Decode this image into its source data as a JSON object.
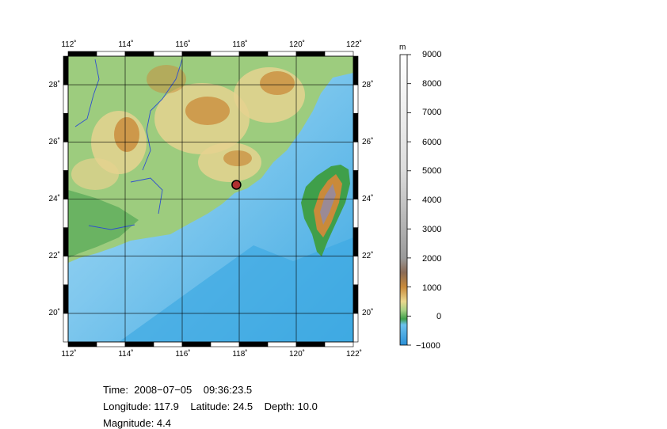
{
  "map": {
    "lon_ticks": [
      "112˚",
      "114˚",
      "116˚",
      "118˚",
      "120˚",
      "122˚"
    ],
    "lat_ticks": [
      "28˚",
      "26˚",
      "24˚",
      "22˚",
      "20˚"
    ],
    "lon_range": [
      112,
      122
    ],
    "lat_range": [
      19,
      29
    ],
    "epicenter": {
      "lon": 117.9,
      "lat": 24.5
    },
    "colors": {
      "sea_deep": "#3fa9e2",
      "sea_shallow": "#a8dcf5",
      "lowland": "#3f9f4a",
      "hills": "#9dcc7e",
      "uplands": "#e5d28f",
      "mountains": "#c98a3a",
      "peaks": "#9a8a96",
      "marker": "#b03030"
    }
  },
  "colorbar": {
    "unit": "m",
    "labels": [
      "9000",
      "8000",
      "7000",
      "6000",
      "5000",
      "4000",
      "3000",
      "2000",
      "1000",
      "0",
      "−1000"
    ]
  },
  "event": {
    "time_line": "Time:  2008−07−05    09:36:23.5",
    "location_line": "Longitude: 117.9    Latitude: 24.5    Depth: 10.0",
    "magnitude_line": "Magnitude: 4.4"
  }
}
